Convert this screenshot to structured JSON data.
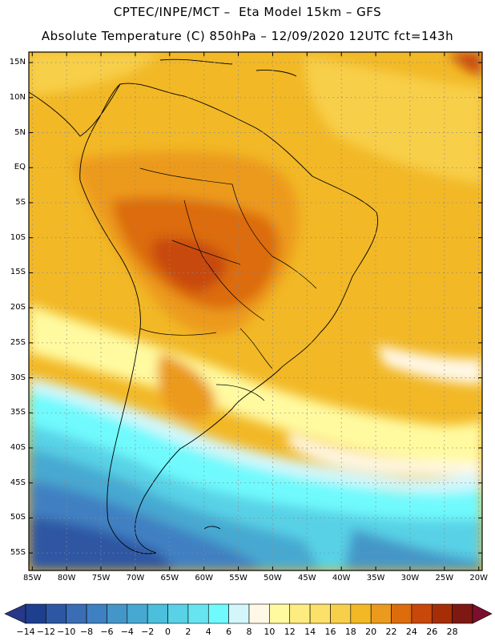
{
  "header": {
    "line1": "CPTEC/INPE/MCT –  Eta Model 15km – GFS",
    "line2": "Absolute Temperature (C) 850hPa – 12/09/2020 12UTC fct=143h"
  },
  "map": {
    "variable": "Absolute Temperature (C) 850hPa",
    "lat_labels": [
      "15N",
      "10N",
      "5N",
      "EQ",
      "5S",
      "10S",
      "15S",
      "20S",
      "25S",
      "30S",
      "35S",
      "40S",
      "45S",
      "50S",
      "55S"
    ],
    "lon_labels": [
      "85W",
      "80W",
      "75W",
      "70W",
      "65W",
      "60W",
      "55W",
      "50W",
      "45W",
      "40W",
      "35W",
      "30W",
      "25W",
      "20W"
    ],
    "lat_values": [
      15,
      10,
      5,
      0,
      -5,
      -10,
      -15,
      -20,
      -25,
      -30,
      -35,
      -40,
      -45,
      -50,
      -55
    ],
    "lon_values": [
      -85,
      -80,
      -75,
      -70,
      -65,
      -60,
      -55,
      -50,
      -45,
      -40,
      -35,
      -30,
      -25,
      -20
    ],
    "lat_range": [
      -57.5,
      16.5
    ],
    "lon_range": [
      -85.5,
      -19.5
    ],
    "frame_color": "#000000",
    "grid_style": "dotted"
  },
  "colorbar": {
    "labels": [
      "-14",
      "-12",
      "-10",
      "-8",
      "-6",
      "-4",
      "-2",
      "0",
      "2",
      "4",
      "6",
      "8",
      "10",
      "12",
      "14",
      "16",
      "18",
      "20",
      "22",
      "24",
      "26",
      "28"
    ],
    "colors": [
      "#1e3f8e",
      "#2d57a3",
      "#3a6db4",
      "#3f80c2",
      "#4496c8",
      "#47a9d1",
      "#4bbfdc",
      "#59d1e6",
      "#66e4ef",
      "#70fafd",
      "#d4f6fb",
      "#fff8e6",
      "#fffaa0",
      "#ffec80",
      "#fbe06a",
      "#f8cf4a",
      "#f2b826",
      "#ec9a1e",
      "#dc6c0c",
      "#c7480a",
      "#a52e07",
      "#7e1812"
    ],
    "under_color": "#283888",
    "over_color": "#7b0f2e"
  }
}
